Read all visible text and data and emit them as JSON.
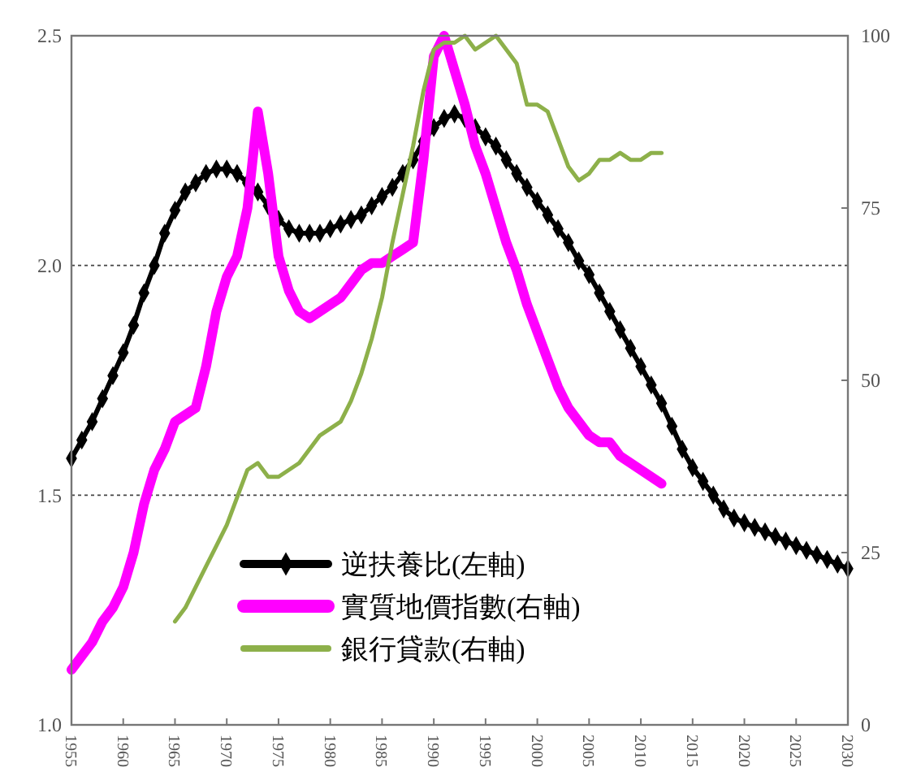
{
  "chart_data": {
    "type": "line",
    "x": [
      1955,
      1956,
      1957,
      1958,
      1959,
      1960,
      1961,
      1962,
      1963,
      1964,
      1965,
      1966,
      1967,
      1968,
      1969,
      1970,
      1971,
      1972,
      1973,
      1974,
      1975,
      1976,
      1977,
      1978,
      1979,
      1980,
      1981,
      1982,
      1983,
      1984,
      1985,
      1986,
      1987,
      1988,
      1989,
      1990,
      1991,
      1992,
      1993,
      1994,
      1995,
      1996,
      1997,
      1998,
      1999,
      2000,
      2001,
      2002,
      2003,
      2004,
      2005,
      2006,
      2007,
      2008,
      2009,
      2010,
      2011,
      2012,
      2013,
      2014,
      2015,
      2016,
      2017,
      2018,
      2019,
      2020,
      2021,
      2022,
      2023,
      2024,
      2025,
      2026,
      2027,
      2028,
      2029,
      2030
    ],
    "series": [
      {
        "name": "逆扶養比(左軸)",
        "color": "#000000",
        "marker": "diamond",
        "values": [
          1.58,
          1.62,
          1.66,
          1.71,
          1.76,
          1.81,
          1.87,
          1.94,
          2.0,
          2.07,
          2.12,
          2.16,
          2.18,
          2.2,
          2.21,
          2.21,
          2.2,
          2.18,
          2.16,
          2.13,
          2.1,
          2.08,
          2.07,
          2.07,
          2.07,
          2.08,
          2.09,
          2.1,
          2.11,
          2.13,
          2.15,
          2.17,
          2.2,
          2.23,
          2.27,
          2.3,
          2.32,
          2.33,
          2.32,
          2.3,
          2.28,
          2.26,
          2.23,
          2.2,
          2.17,
          2.14,
          2.11,
          2.08,
          2.05,
          2.01,
          1.98,
          1.94,
          1.9,
          1.86,
          1.82,
          1.78,
          1.74,
          1.7,
          1.65,
          1.6,
          1.56,
          1.53,
          1.5,
          1.47,
          1.45,
          1.44,
          1.43,
          1.42,
          1.41,
          1.4,
          1.39,
          1.38,
          1.37,
          1.36,
          1.35,
          1.34
        ]
      },
      {
        "name": "實質地價指數(右軸)",
        "color": "#ff00ff",
        "axis": "y2",
        "values": [
          8,
          10,
          12,
          15,
          17,
          20,
          25,
          32,
          37,
          40,
          44,
          45,
          46,
          52,
          60,
          65,
          68,
          75,
          89,
          80,
          68,
          63,
          60,
          59,
          60,
          61,
          62,
          64,
          66,
          67,
          67,
          68,
          69,
          70,
          82,
          97,
          100,
          95,
          90,
          84,
          80,
          75,
          70,
          66,
          61,
          57,
          53,
          49,
          46,
          44,
          42,
          41,
          41,
          39,
          38,
          37,
          36,
          35,
          null,
          null,
          null,
          null,
          null,
          null,
          null,
          null,
          null,
          null,
          null,
          null,
          null,
          null,
          null,
          null,
          null,
          null
        ]
      },
      {
        "name": "銀行貸款(右軸)",
        "color": "#8db04a",
        "axis": "y2",
        "values": [
          null,
          null,
          null,
          null,
          null,
          null,
          null,
          null,
          null,
          null,
          15,
          17,
          20,
          23,
          26,
          29,
          33,
          37,
          38,
          36,
          36,
          37,
          38,
          40,
          42,
          43,
          44,
          47,
          51,
          56,
          62,
          70,
          77,
          84,
          92,
          98,
          99,
          99,
          100,
          98,
          99,
          100,
          98,
          96,
          90,
          90,
          89,
          85,
          81,
          79,
          80,
          82,
          82,
          83,
          82,
          82,
          83,
          83,
          null,
          null,
          null,
          null,
          null,
          null,
          null,
          null,
          null,
          null,
          null,
          null,
          null,
          null,
          null,
          null,
          null,
          null
        ]
      }
    ],
    "xlim": [
      1955,
      2030
    ],
    "xticks": [
      1955,
      1960,
      1965,
      1970,
      1975,
      1980,
      1985,
      1990,
      1995,
      2000,
      2005,
      2010,
      2015,
      2020,
      2025,
      2030
    ],
    "ylim": [
      1.0,
      2.5
    ],
    "yticks": [
      {
        "value": 1.0,
        "label": "1.0"
      },
      {
        "value": 1.5,
        "label": "1.5"
      },
      {
        "value": 2.0,
        "label": "2.0"
      },
      {
        "value": 2.5,
        "label": "2.5"
      }
    ],
    "y2lim": [
      0,
      100
    ],
    "y2ticks": [
      0,
      25,
      50,
      75,
      100
    ],
    "grid": "y",
    "legend": "bottom"
  }
}
